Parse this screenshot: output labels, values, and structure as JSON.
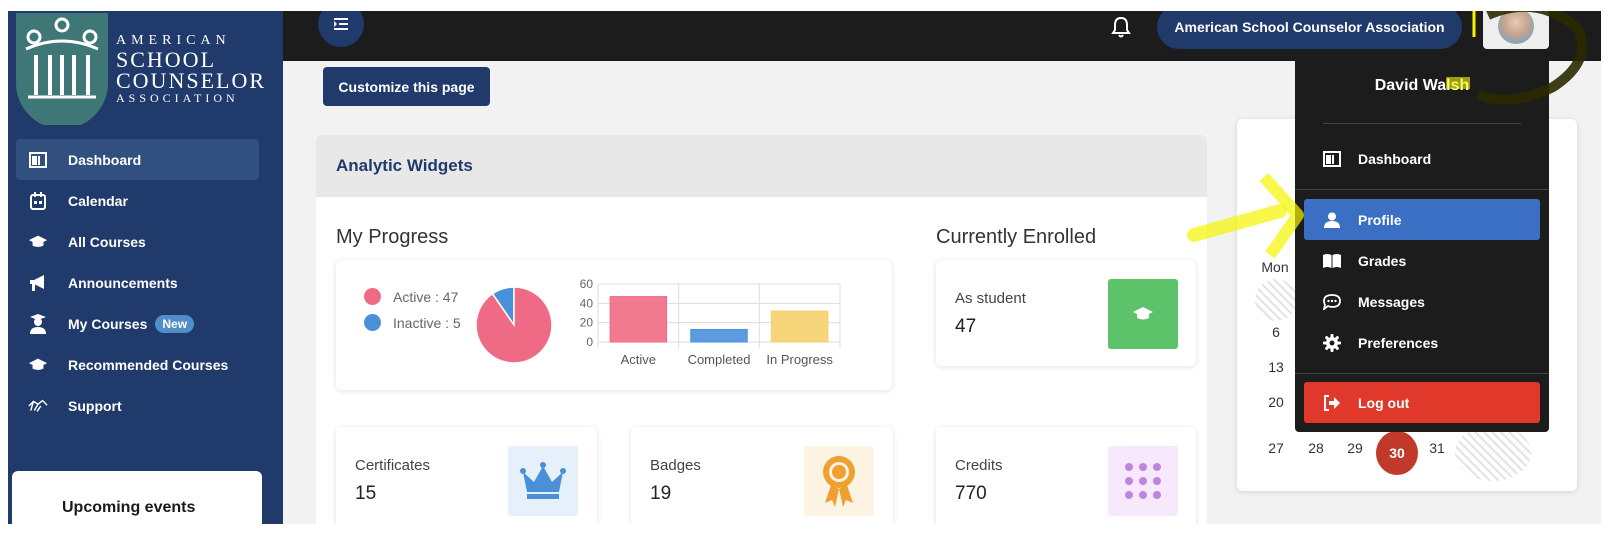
{
  "brand": {
    "line1": "AMERICAN",
    "line2a": "SCHOOL",
    "line2b": "COUNSELOR",
    "line3": "ASSOCIATION"
  },
  "sidebar": {
    "items": [
      {
        "label": "Dashboard",
        "icon": "dashboard-icon"
      },
      {
        "label": "Calendar",
        "icon": "calendar-icon"
      },
      {
        "label": "All Courses",
        "icon": "graduation-cap-icon"
      },
      {
        "label": "Announcements",
        "icon": "megaphone-icon"
      },
      {
        "label": "My Courses",
        "icon": "student-icon",
        "badge": "New"
      },
      {
        "label": "Recommended Courses",
        "icon": "graduation-cap-icon"
      },
      {
        "label": "Support",
        "icon": "handshake-icon"
      }
    ],
    "events_title": "Upcoming events"
  },
  "topbar": {
    "org_name": "American School Counselor Association"
  },
  "content": {
    "customize_label": "Customize this page",
    "analytic_title": "Analytic Widgets",
    "progress_title": "My Progress",
    "enrolled_title": "Currently Enrolled",
    "enrolled_label": "As student",
    "enrolled_value": "47",
    "stats": [
      {
        "label": "Certificates",
        "value": "15",
        "icon": "crown-icon",
        "tile_color": "#e6f0fb",
        "icon_color": "#4a90d9"
      },
      {
        "label": "Badges",
        "value": "19",
        "icon": "award-ribbon-icon",
        "tile_color": "#fdf3e3",
        "icon_color": "#f0a030"
      },
      {
        "label": "Credits",
        "value": "770",
        "icon": "dot-grid-icon",
        "tile_color": "#f5e9fb",
        "icon_color": "#c084e0"
      }
    ]
  },
  "chart_data": [
    {
      "type": "pie",
      "labels": [
        "Active",
        "Inactive"
      ],
      "values": [
        47,
        5
      ],
      "legend": [
        "Active : 47",
        "Inactive : 5"
      ],
      "colors": [
        "#ef6b85",
        "#4a90d9"
      ]
    },
    {
      "type": "bar",
      "categories": [
        "Active",
        "Completed",
        "In Progress"
      ],
      "values": [
        47,
        13,
        32
      ],
      "yticks": [
        "0",
        "20",
        "40",
        "60"
      ],
      "ylim": [
        0,
        60
      ],
      "colors": [
        "#ef6b85",
        "#4a90d9",
        "#f6d06b"
      ],
      "grid": true
    }
  ],
  "calendar": {
    "day_header": "Mon",
    "rows": [
      [
        "6"
      ],
      [
        "13"
      ],
      [
        "20"
      ],
      [
        "27",
        "28",
        "29",
        "30",
        "31"
      ]
    ],
    "today": "30",
    "today_color": "#c0392b"
  },
  "dropdown": {
    "user_name": "David Walsh",
    "items": [
      {
        "label": "Dashboard",
        "icon": "dashboard-icon"
      },
      {
        "label": "Profile",
        "icon": "user-icon",
        "active": true
      },
      {
        "label": "Grades",
        "icon": "book-icon"
      },
      {
        "label": "Messages",
        "icon": "chat-icon"
      },
      {
        "label": "Preferences",
        "icon": "gear-icon"
      }
    ],
    "logout_label": "Log out"
  },
  "colors": {
    "brand_navy": "#1f3a6b",
    "topbar": "#1c1c1c",
    "active_blue": "#3a6fc4",
    "logout_red": "#e0392b",
    "enrolled_green": "#5cc36b",
    "highlight_yellow": "#f5f500"
  }
}
